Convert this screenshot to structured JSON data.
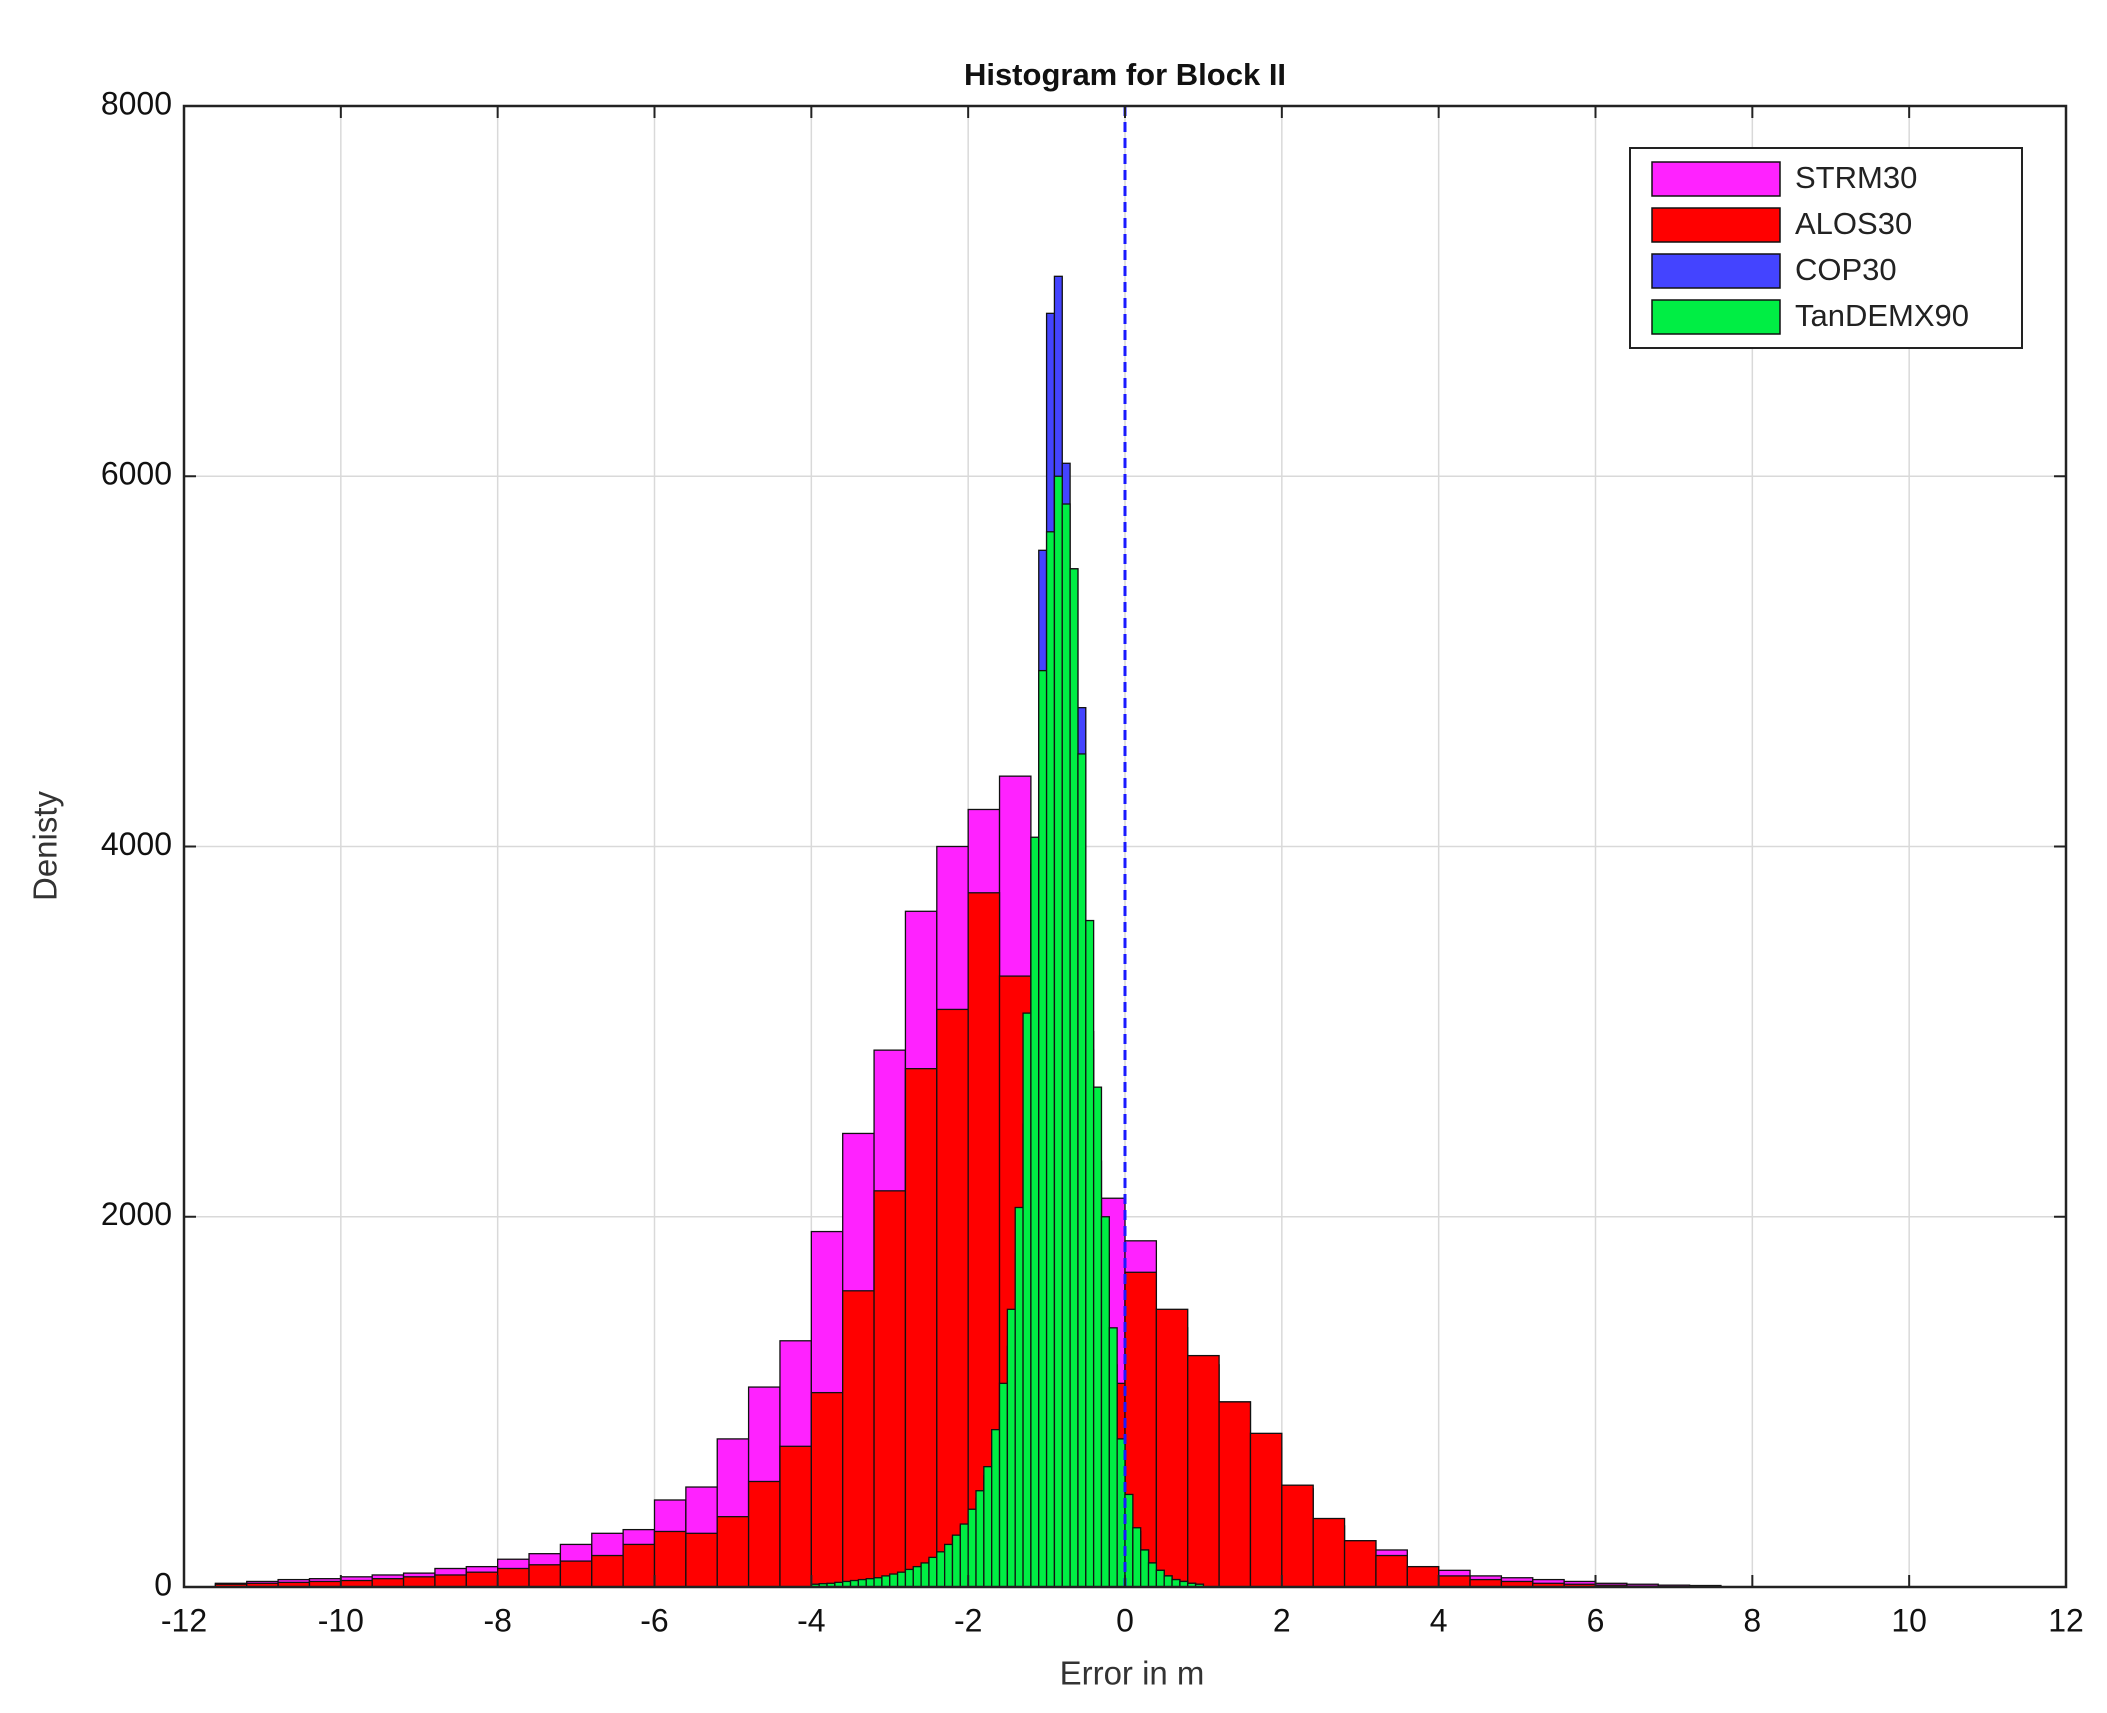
{
  "chart_data": {
    "type": "histogram",
    "title": "Histogram for Block II",
    "x_label": "Error in m",
    "y_label": "Denisty",
    "xlim": [
      -12,
      12
    ],
    "ylim": [
      0,
      8000
    ],
    "xticks": [
      -12,
      -10,
      -8,
      -6,
      -4,
      -2,
      0,
      2,
      4,
      6,
      8,
      10,
      12
    ],
    "yticks": [
      0,
      2000,
      4000,
      6000,
      8000
    ],
    "grid": true,
    "legend": "top-right",
    "reference_line": {
      "x": 0,
      "color": "#1a1aff",
      "style": "dashed"
    },
    "series": [
      {
        "name": "STRM30",
        "color": "#ff22ff",
        "bins": [
          -11.6,
          -11.2,
          -10.8,
          -10.4,
          -10.0,
          -9.6,
          -9.2,
          -8.8,
          -8.4,
          -8.0,
          -7.6,
          -7.2,
          -6.8,
          -6.4,
          -6.0,
          -5.6,
          -5.2,
          -4.8,
          -4.4,
          -4.0,
          -3.6,
          -3.2,
          -2.8,
          -2.4,
          -2.0,
          -1.6,
          -1.2,
          -0.8,
          -0.4,
          0.0,
          0.4,
          0.8,
          1.2,
          1.6,
          2.0,
          2.4,
          2.8,
          3.2,
          3.6,
          4.0,
          4.4,
          4.8,
          5.2,
          5.6,
          6.0,
          6.4,
          6.8,
          7.2,
          7.6
        ],
        "values": [
          20,
          30,
          40,
          45,
          55,
          65,
          75,
          100,
          110,
          150,
          180,
          230,
          290,
          310,
          470,
          540,
          800,
          1080,
          1330,
          1920,
          2450,
          2900,
          3650,
          4000,
          4200,
          4380,
          3900,
          2900,
          2100,
          1870,
          1400,
          1200,
          1000,
          750,
          530,
          330,
          250,
          200,
          110,
          90,
          60,
          50,
          40,
          30,
          20,
          15,
          10,
          8
        ]
      },
      {
        "name": "ALOS30",
        "color": "#ff0000",
        "bins": [
          -11.6,
          -11.2,
          -10.8,
          -10.4,
          -10.0,
          -9.6,
          -9.2,
          -8.8,
          -8.4,
          -8.0,
          -7.6,
          -7.2,
          -6.8,
          -6.4,
          -6.0,
          -5.6,
          -5.2,
          -4.8,
          -4.4,
          -4.0,
          -3.6,
          -3.2,
          -2.8,
          -2.4,
          -2.0,
          -1.6,
          -1.2,
          -0.8,
          -0.4,
          0.0,
          0.4,
          0.8,
          1.2,
          1.6,
          2.0,
          2.4,
          2.8,
          3.2,
          3.6,
          4.0,
          4.4,
          4.8,
          5.2,
          5.6,
          6.0,
          6.4,
          6.8
        ],
        "values": [
          15,
          20,
          25,
          30,
          35,
          45,
          55,
          65,
          80,
          100,
          120,
          140,
          170,
          230,
          300,
          290,
          380,
          570,
          760,
          1050,
          1600,
          2140,
          2800,
          3120,
          3750,
          3300,
          2200,
          1600,
          1100,
          1700,
          1500,
          1250,
          1000,
          830,
          550,
          370,
          250,
          170,
          110,
          60,
          40,
          30,
          20,
          15,
          10,
          5
        ]
      },
      {
        "name": "COP30",
        "color": "#4444ff",
        "bins": [
          -4.0,
          -3.9,
          -3.8,
          -3.7,
          -3.6,
          -3.5,
          -3.4,
          -3.3,
          -3.2,
          -3.1,
          -3.0,
          -2.9,
          -2.8,
          -2.7,
          -2.6,
          -2.5,
          -2.4,
          -2.3,
          -2.2,
          -2.1,
          -2.0,
          -1.9,
          -1.8,
          -1.7,
          -1.6,
          -1.5,
          -1.4,
          -1.3,
          -1.2,
          -1.1,
          -1.0,
          -0.9,
          -0.8,
          -0.7,
          -0.6,
          -0.5,
          -0.4,
          -0.3,
          -0.2,
          -0.1,
          0.0,
          0.1,
          0.2,
          0.3,
          0.4,
          0.5,
          0.6,
          0.7,
          0.8,
          0.9,
          1.0
        ],
        "values": [
          10,
          12,
          15,
          18,
          20,
          25,
          30,
          35,
          40,
          50,
          60,
          70,
          85,
          100,
          120,
          150,
          180,
          220,
          270,
          330,
          400,
          480,
          600,
          750,
          950,
          1300,
          1800,
          2500,
          3980,
          5600,
          6880,
          7080,
          6070,
          5500,
          4750,
          3000,
          2300,
          1800,
          1200,
          700,
          450,
          300,
          200,
          130,
          90,
          60,
          40,
          30,
          20,
          15
        ]
      },
      {
        "name": "TanDEMX90",
        "color": "#00ee44",
        "bins": [
          -4.0,
          -3.9,
          -3.8,
          -3.7,
          -3.6,
          -3.5,
          -3.4,
          -3.3,
          -3.2,
          -3.1,
          -3.0,
          -2.9,
          -2.8,
          -2.7,
          -2.6,
          -2.5,
          -2.4,
          -2.3,
          -2.2,
          -2.1,
          -2.0,
          -1.9,
          -1.8,
          -1.7,
          -1.6,
          -1.5,
          -1.4,
          -1.3,
          -1.2,
          -1.1,
          -1.0,
          -0.9,
          -0.8,
          -0.7,
          -0.6,
          -0.5,
          -0.4,
          -0.3,
          -0.2,
          -0.1,
          0.0,
          0.1,
          0.2,
          0.3,
          0.4,
          0.5,
          0.6,
          0.7,
          0.8,
          0.9,
          1.0
        ],
        "values": [
          15,
          18,
          20,
          25,
          30,
          35,
          40,
          45,
          50,
          60,
          70,
          80,
          95,
          110,
          130,
          160,
          190,
          230,
          280,
          340,
          420,
          520,
          650,
          850,
          1100,
          1500,
          2050,
          3100,
          4050,
          4950,
          5700,
          6000,
          5850,
          5500,
          4500,
          3600,
          2700,
          2000,
          1400,
          800,
          500,
          320,
          200,
          130,
          90,
          60,
          40,
          30,
          20,
          15
        ]
      }
    ]
  }
}
